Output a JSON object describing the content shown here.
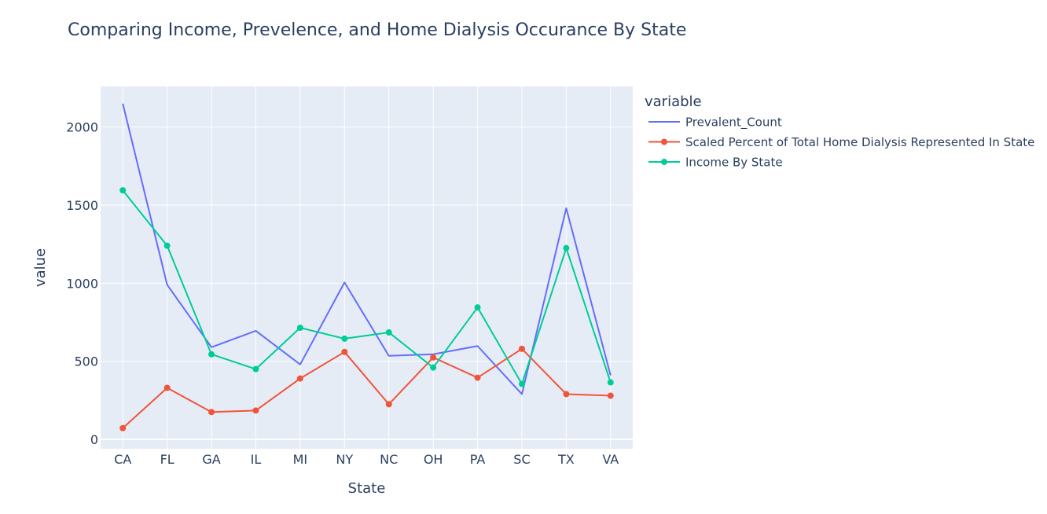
{
  "chart_data": {
    "type": "line",
    "title": "Comparing Income, Prevelence, and Home Dialysis Occurance By State",
    "xlabel": "State",
    "ylabel": "value",
    "categories": [
      "CA",
      "FL",
      "GA",
      "IL",
      "MI",
      "NY",
      "NC",
      "OH",
      "PA",
      "SC",
      "TX",
      "VA"
    ],
    "ylim": [
      -60,
      2260
    ],
    "yticks": [
      0,
      500,
      1000,
      1500,
      2000
    ],
    "grid": true,
    "legend_title": "variable",
    "legend_position": "right",
    "series": [
      {
        "name": "Prevalent_Count",
        "color": "#636efa",
        "markers": false,
        "values": [
          2150,
          990,
          590,
          695,
          480,
          1005,
          535,
          545,
          598,
          290,
          1480,
          410
        ]
      },
      {
        "name": "Scaled Percent of Total Home Dialysis Represented In State",
        "color": "#ef553b",
        "markers": true,
        "values": [
          72,
          330,
          175,
          185,
          390,
          560,
          225,
          525,
          395,
          580,
          290,
          280
        ]
      },
      {
        "name": "Income By State",
        "color": "#00cc96",
        "markers": true,
        "values": [
          1595,
          1240,
          545,
          450,
          715,
          645,
          685,
          460,
          845,
          355,
          1225,
          365
        ]
      }
    ]
  }
}
